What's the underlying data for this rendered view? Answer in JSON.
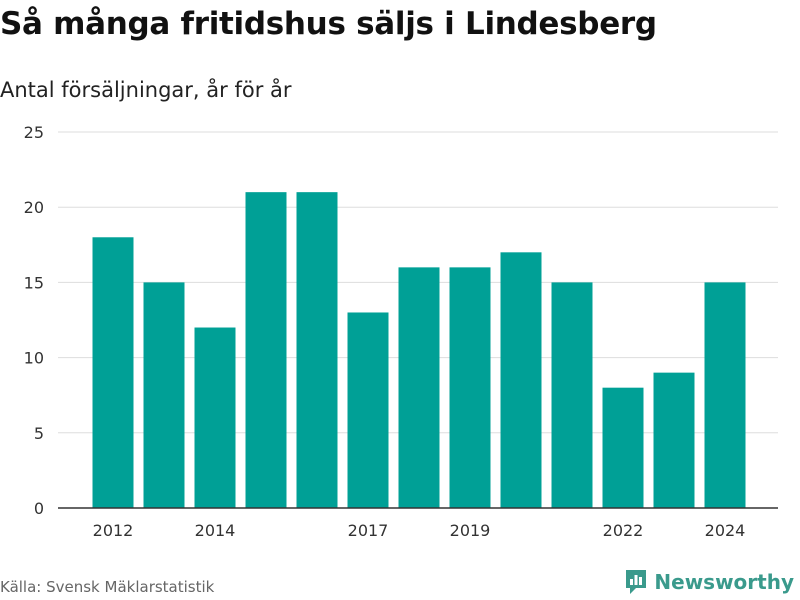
{
  "header": {
    "title": "Så många fritidshus säljs i Lindesberg",
    "subtitle": "Antal försäljningar, år för år"
  },
  "footer": {
    "source": "Källa: Svensk Mäklarstatistik",
    "brand": "Newsworthy",
    "brand_color": "#3a9a8c"
  },
  "chart_data": {
    "type": "bar",
    "categories": [
      "2012",
      "2013",
      "2014",
      "2015",
      "2016",
      "2017",
      "2018",
      "2019",
      "2020",
      "2021",
      "2022",
      "2023",
      "2024"
    ],
    "values": [
      18,
      15,
      12,
      21,
      21,
      13,
      16,
      16,
      17,
      15,
      8,
      9,
      15
    ],
    "x_tick_labels": [
      "2012",
      "2014",
      "2017",
      "2019",
      "2022",
      "2024"
    ],
    "y_ticks": [
      0,
      5,
      10,
      15,
      20,
      25
    ],
    "ylim": [
      0,
      25
    ],
    "grid": true,
    "bar_color": "#00a096"
  }
}
